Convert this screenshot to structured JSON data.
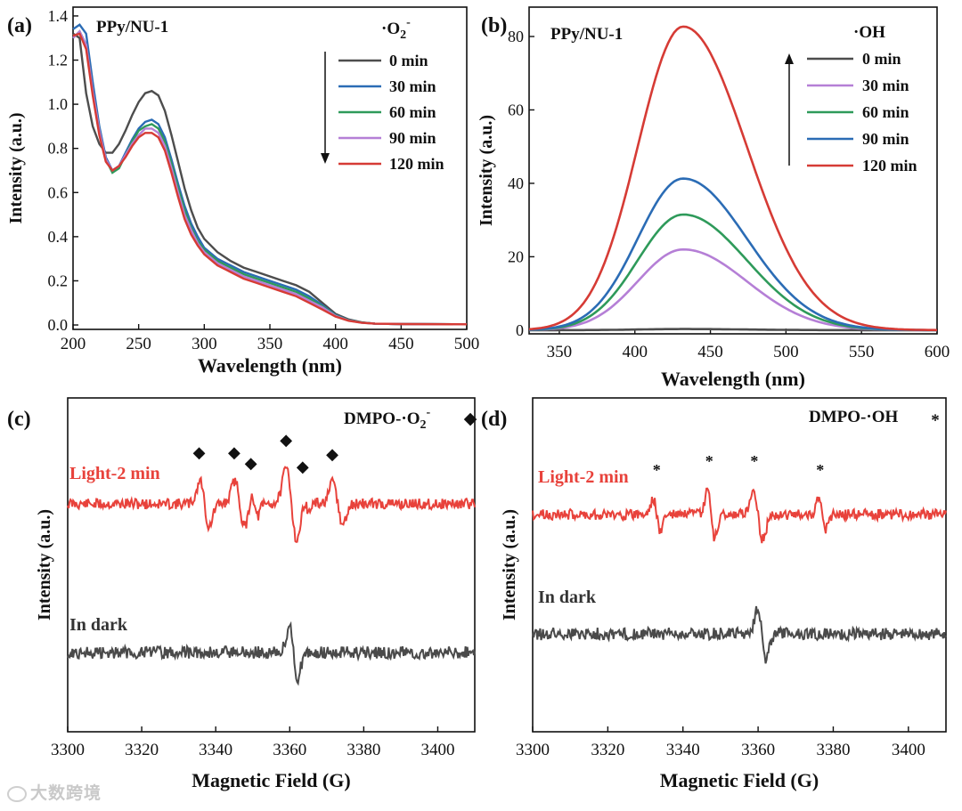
{
  "chart_data": [
    {
      "panel": "(a)",
      "type": "line",
      "title": "PPy/NU-1",
      "species": "·O2⁻",
      "xlabel": "Wavelength (nm)",
      "ylabel": "Intensity (a.u.)",
      "xlim": [
        200,
        500
      ],
      "ylim": [
        -0.02,
        1.44
      ],
      "xticks": [
        200,
        250,
        300,
        350,
        400,
        450,
        500
      ],
      "yticks": [
        0.0,
        0.2,
        0.4,
        0.6,
        0.8,
        1.0,
        1.2,
        1.4
      ],
      "ytick_labels": [
        "0.0",
        "0.2",
        "0.4",
        "0.6",
        "0.8",
        "1.0",
        "1.2",
        "1.4"
      ],
      "series": [
        {
          "name": "0 min",
          "color": "#4d4d4d",
          "points": [
            [
              200,
              1.32
            ],
            [
              205,
              1.3
            ],
            [
              210,
              1.05
            ],
            [
              215,
              0.9
            ],
            [
              220,
              0.82
            ],
            [
              225,
              0.78
            ],
            [
              230,
              0.78
            ],
            [
              235,
              0.82
            ],
            [
              240,
              0.88
            ],
            [
              245,
              0.95
            ],
            [
              250,
              1.01
            ],
            [
              255,
              1.05
            ],
            [
              260,
              1.06
            ],
            [
              265,
              1.04
            ],
            [
              270,
              0.97
            ],
            [
              275,
              0.86
            ],
            [
              280,
              0.74
            ],
            [
              285,
              0.62
            ],
            [
              290,
              0.52
            ],
            [
              295,
              0.44
            ],
            [
              300,
              0.39
            ],
            [
              310,
              0.33
            ],
            [
              320,
              0.29
            ],
            [
              330,
              0.26
            ],
            [
              340,
              0.24
            ],
            [
              350,
              0.22
            ],
            [
              360,
              0.2
            ],
            [
              370,
              0.18
            ],
            [
              380,
              0.15
            ],
            [
              390,
              0.1
            ],
            [
              400,
              0.05
            ],
            [
              410,
              0.025
            ],
            [
              420,
              0.012
            ],
            [
              430,
              0.006
            ],
            [
              450,
              0.004
            ],
            [
              500,
              0.003
            ]
          ]
        },
        {
          "name": "30 min",
          "color": "#2b6cb5",
          "points": [
            [
              200,
              1.34
            ],
            [
              205,
              1.36
            ],
            [
              210,
              1.32
            ],
            [
              215,
              1.1
            ],
            [
              220,
              0.9
            ],
            [
              225,
              0.76
            ],
            [
              230,
              0.7
            ],
            [
              235,
              0.72
            ],
            [
              240,
              0.78
            ],
            [
              245,
              0.84
            ],
            [
              250,
              0.89
            ],
            [
              255,
              0.92
            ],
            [
              260,
              0.93
            ],
            [
              265,
              0.91
            ],
            [
              270,
              0.85
            ],
            [
              275,
              0.75
            ],
            [
              280,
              0.64
            ],
            [
              285,
              0.54
            ],
            [
              290,
              0.46
            ],
            [
              295,
              0.4
            ],
            [
              300,
              0.35
            ],
            [
              310,
              0.3
            ],
            [
              320,
              0.27
            ],
            [
              330,
              0.24
            ],
            [
              340,
              0.22
            ],
            [
              350,
              0.2
            ],
            [
              360,
              0.18
            ],
            [
              370,
              0.16
            ],
            [
              380,
              0.13
            ],
            [
              390,
              0.09
            ],
            [
              400,
              0.045
            ],
            [
              410,
              0.022
            ],
            [
              420,
              0.011
            ],
            [
              430,
              0.006
            ],
            [
              450,
              0.004
            ],
            [
              500,
              0.003
            ]
          ]
        },
        {
          "name": "60 min",
          "color": "#2e9a5a",
          "points": [
            [
              200,
              1.3
            ],
            [
              205,
              1.33
            ],
            [
              210,
              1.27
            ],
            [
              215,
              1.06
            ],
            [
              220,
              0.88
            ],
            [
              225,
              0.75
            ],
            [
              230,
              0.69
            ],
            [
              235,
              0.71
            ],
            [
              240,
              0.77
            ],
            [
              245,
              0.83
            ],
            [
              250,
              0.88
            ],
            [
              255,
              0.9
            ],
            [
              260,
              0.91
            ],
            [
              265,
              0.89
            ],
            [
              270,
              0.83
            ],
            [
              275,
              0.73
            ],
            [
              280,
              0.62
            ],
            [
              285,
              0.52
            ],
            [
              290,
              0.44
            ],
            [
              295,
              0.38
            ],
            [
              300,
              0.34
            ],
            [
              310,
              0.29
            ],
            [
              320,
              0.26
            ],
            [
              330,
              0.23
            ],
            [
              340,
              0.21
            ],
            [
              350,
              0.19
            ],
            [
              360,
              0.17
            ],
            [
              370,
              0.15
            ],
            [
              380,
              0.12
            ],
            [
              390,
              0.085
            ],
            [
              400,
              0.043
            ],
            [
              410,
              0.021
            ],
            [
              420,
              0.011
            ],
            [
              430,
              0.006
            ],
            [
              450,
              0.004
            ],
            [
              500,
              0.003
            ]
          ]
        },
        {
          "name": "90 min",
          "color": "#b57fd6",
          "points": [
            [
              200,
              1.3
            ],
            [
              205,
              1.33
            ],
            [
              210,
              1.27
            ],
            [
              215,
              1.06
            ],
            [
              220,
              0.88
            ],
            [
              225,
              0.75
            ],
            [
              230,
              0.7
            ],
            [
              235,
              0.72
            ],
            [
              240,
              0.77
            ],
            [
              245,
              0.82
            ],
            [
              250,
              0.86
            ],
            [
              255,
              0.89
            ],
            [
              260,
              0.89
            ],
            [
              265,
              0.87
            ],
            [
              270,
              0.81
            ],
            [
              275,
              0.71
            ],
            [
              280,
              0.6
            ],
            [
              285,
              0.5
            ],
            [
              290,
              0.43
            ],
            [
              295,
              0.37
            ],
            [
              300,
              0.33
            ],
            [
              310,
              0.28
            ],
            [
              320,
              0.25
            ],
            [
              330,
              0.22
            ],
            [
              340,
              0.2
            ],
            [
              350,
              0.18
            ],
            [
              360,
              0.16
            ],
            [
              370,
              0.14
            ],
            [
              380,
              0.11
            ],
            [
              390,
              0.08
            ],
            [
              400,
              0.041
            ],
            [
              410,
              0.02
            ],
            [
              420,
              0.01
            ],
            [
              430,
              0.006
            ],
            [
              450,
              0.004
            ],
            [
              500,
              0.003
            ]
          ]
        },
        {
          "name": "120 min",
          "color": "#d63b35",
          "points": [
            [
              200,
              1.31
            ],
            [
              205,
              1.32
            ],
            [
              210,
              1.25
            ],
            [
              215,
              1.04
            ],
            [
              220,
              0.86
            ],
            [
              225,
              0.74
            ],
            [
              230,
              0.7
            ],
            [
              235,
              0.72
            ],
            [
              240,
              0.76
            ],
            [
              245,
              0.81
            ],
            [
              250,
              0.85
            ],
            [
              255,
              0.87
            ],
            [
              260,
              0.87
            ],
            [
              265,
              0.85
            ],
            [
              270,
              0.79
            ],
            [
              275,
              0.69
            ],
            [
              280,
              0.58
            ],
            [
              285,
              0.48
            ],
            [
              290,
              0.41
            ],
            [
              295,
              0.36
            ],
            [
              300,
              0.32
            ],
            [
              310,
              0.27
            ],
            [
              320,
              0.24
            ],
            [
              330,
              0.21
            ],
            [
              340,
              0.19
            ],
            [
              350,
              0.17
            ],
            [
              360,
              0.15
            ],
            [
              370,
              0.13
            ],
            [
              380,
              0.1
            ],
            [
              390,
              0.07
            ],
            [
              400,
              0.038
            ],
            [
              410,
              0.019
            ],
            [
              420,
              0.01
            ],
            [
              430,
              0.006
            ],
            [
              450,
              0.004
            ],
            [
              500,
              0.003
            ]
          ]
        }
      ]
    },
    {
      "panel": "(b)",
      "type": "line",
      "title": "PPy/NU-1",
      "species": "·OH",
      "xlabel": "Wavelength (nm)",
      "ylabel": "Intensity (a.u.)",
      "xlim": [
        330,
        600
      ],
      "ylim": [
        -1,
        88
      ],
      "xticks": [
        350,
        400,
        450,
        500,
        550,
        600
      ],
      "yticks": [
        0,
        20,
        40,
        60,
        80
      ],
      "peak_center": 432,
      "series": [
        {
          "name": "0 min",
          "color": "#4d4d4d",
          "peak": 0.3
        },
        {
          "name": "30 min",
          "color": "#b57fd6",
          "peak": 22
        },
        {
          "name": "60 min",
          "color": "#2e9a5a",
          "peak": 31.5
        },
        {
          "name": "90 min",
          "color": "#2b6cb5",
          "peak": 41.3
        },
        {
          "name": "120 min",
          "color": "#d63b35",
          "peak": 82.7
        }
      ]
    },
    {
      "panel": "(c)",
      "type": "line",
      "title": "DMPO-·O2⁻",
      "marker": "◆",
      "xlabel": "Magnetic Field (G)",
      "ylabel": "Intensity (a.u.)",
      "xlim": [
        3300,
        3410
      ],
      "xticks": [
        3300,
        3320,
        3340,
        3360,
        3380,
        3400
      ],
      "series": [
        {
          "name": "Light-2 min",
          "color": "#e8423b"
        },
        {
          "name": "In dark",
          "color": "#4a4a4a"
        }
      ],
      "peak_markers": [
        3335.5,
        3345,
        3349.5,
        3359,
        3363.5,
        3371.5
      ]
    },
    {
      "panel": "(d)",
      "type": "line",
      "title": "DMPO-·OH",
      "marker": "*",
      "xlabel": "Magnetic Field (G)",
      "ylabel": "Intensity (a.u.)",
      "xlim": [
        3300,
        3410
      ],
      "xticks": [
        3300,
        3320,
        3340,
        3360,
        3380,
        3400
      ],
      "series": [
        {
          "name": "Light-2 min",
          "color": "#e8423b"
        },
        {
          "name": "In dark",
          "color": "#4a4a4a"
        }
      ],
      "peak_markers": [
        3333,
        3347,
        3359,
        3376.5
      ]
    }
  ],
  "watermark": "大数跨境"
}
